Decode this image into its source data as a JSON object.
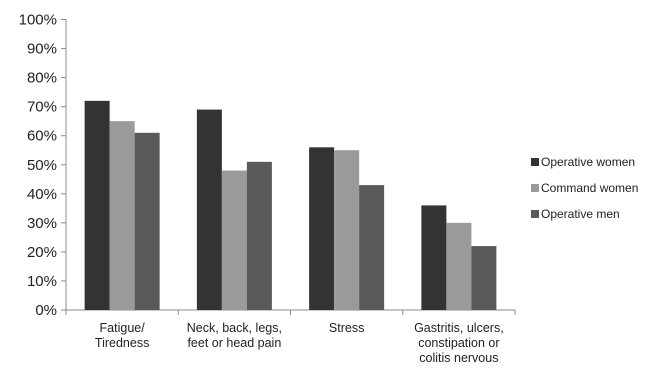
{
  "chart_data": {
    "type": "bar",
    "title": "",
    "xlabel": "",
    "ylabel": "",
    "ylim": [
      0,
      100
    ],
    "y_ticks": [
      "0%",
      "10%",
      "20%",
      "30%",
      "40%",
      "50%",
      "60%",
      "70%",
      "80%",
      "90%",
      "100%"
    ],
    "grid": false,
    "legend_position": "right",
    "categories": [
      [
        "Fatigue/",
        "Tiredness"
      ],
      [
        "Neck, back, legs,",
        "feet or head pain"
      ],
      [
        "Stress"
      ],
      [
        "Gastritis, ulcers,",
        "constipation or",
        "colitis nervous"
      ]
    ],
    "series": [
      {
        "name": "Operative women",
        "color": "#333333",
        "values": [
          72,
          69,
          56,
          36
        ]
      },
      {
        "name": "Command women",
        "color": "#9a9a9a",
        "values": [
          65,
          48,
          55,
          30
        ]
      },
      {
        "name": "Operative men",
        "color": "#595959",
        "values": [
          61,
          51,
          43,
          22
        ]
      }
    ]
  }
}
